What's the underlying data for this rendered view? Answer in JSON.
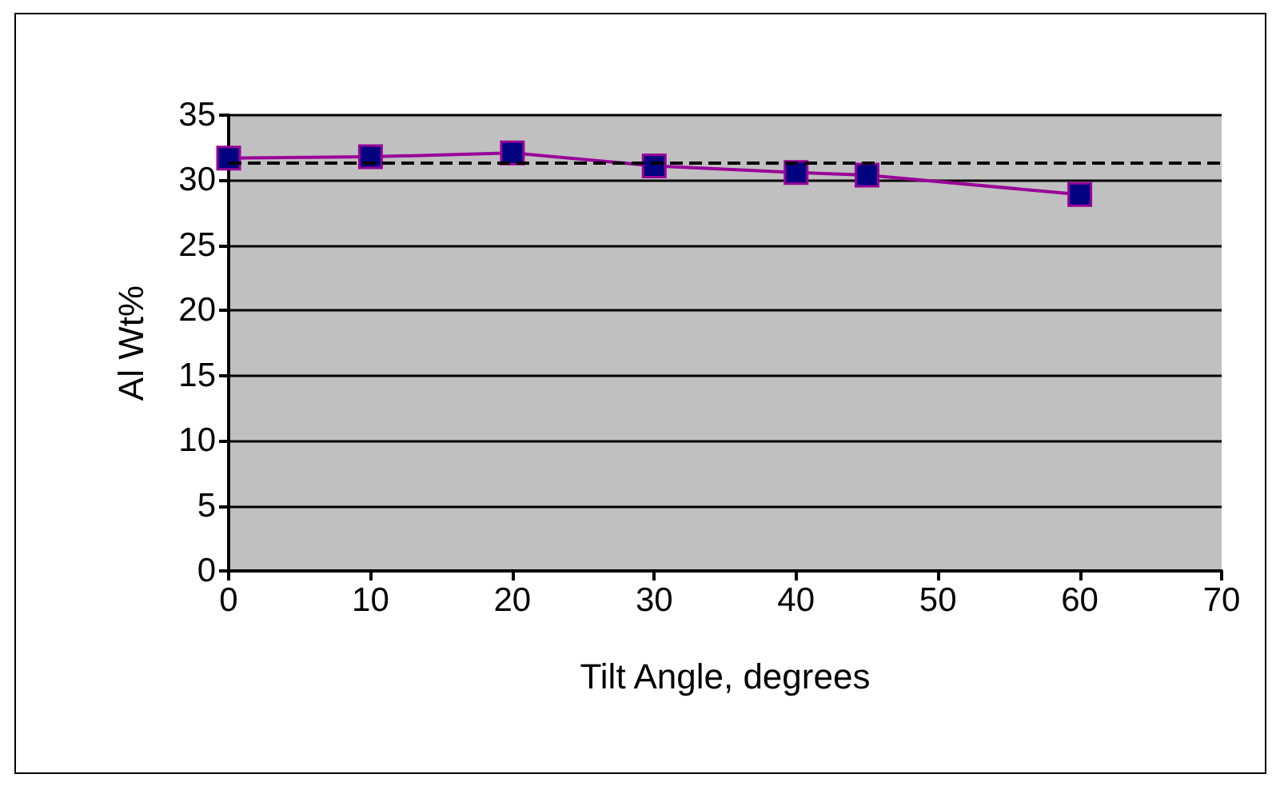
{
  "chart_data": {
    "type": "line",
    "xlabel": "Tilt Angle, degrees",
    "ylabel": "Al Wt%",
    "x": [
      0,
      10,
      20,
      30,
      40,
      45,
      60
    ],
    "series": [
      {
        "color": "#990099",
        "values": [
          31.7,
          31.8,
          32.1,
          31.1,
          30.6,
          30.4,
          28.9
        ]
      }
    ],
    "xlim": [
      0,
      70
    ],
    "xticks": [
      0,
      10,
      20,
      30,
      40,
      50,
      60,
      70
    ],
    "ylim": [
      0,
      35
    ],
    "yticks": [
      0,
      5,
      10,
      15,
      20,
      25,
      30,
      35
    ],
    "grid": "y",
    "marker": "square",
    "line_style": "solid",
    "ref_lines": [
      {
        "axis": "y",
        "value": 31.4,
        "color": "#000000",
        "line_style": "dashed"
      }
    ]
  }
}
